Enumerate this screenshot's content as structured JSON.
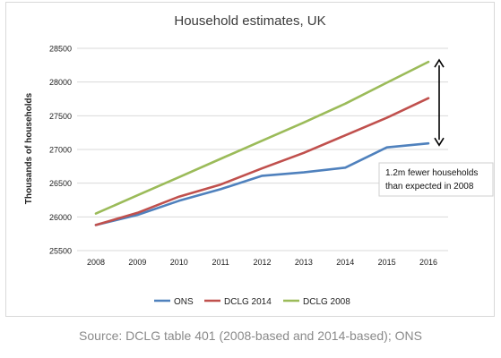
{
  "chart_data": {
    "type": "line",
    "title": "Household estimates, UK",
    "xlabel": "",
    "ylabel": "Thousands of households",
    "x": [
      "2008",
      "2009",
      "2010",
      "2011",
      "2012",
      "2013",
      "2014",
      "2015",
      "2016"
    ],
    "ylim": [
      25500,
      28500
    ],
    "yticks": [
      25500,
      26000,
      26500,
      27000,
      27500,
      28000,
      28500
    ],
    "grid": true,
    "legend_position": "bottom",
    "series": [
      {
        "name": "ONS",
        "color": "#4f81bd",
        "values": [
          25880,
          26030,
          26240,
          26410,
          26610,
          26660,
          26730,
          27030,
          27090
        ]
      },
      {
        "name": "DCLG 2014",
        "color": "#c0504d",
        "values": [
          25880,
          26060,
          26300,
          26480,
          26720,
          26950,
          27210,
          27470,
          27760
        ]
      },
      {
        "name": "DCLG 2008",
        "color": "#9bbb59",
        "values": [
          26050,
          26320,
          26590,
          26860,
          27130,
          27400,
          27680,
          27990,
          28300
        ]
      }
    ],
    "annotation": {
      "text_line1": "1.2m fewer households",
      "text_line2": "than expected in 2008",
      "arrow_from": 28300,
      "arrow_to": 27090
    }
  },
  "source": "Source: DCLG table 401 (2008-based and 2014-based); ONS"
}
